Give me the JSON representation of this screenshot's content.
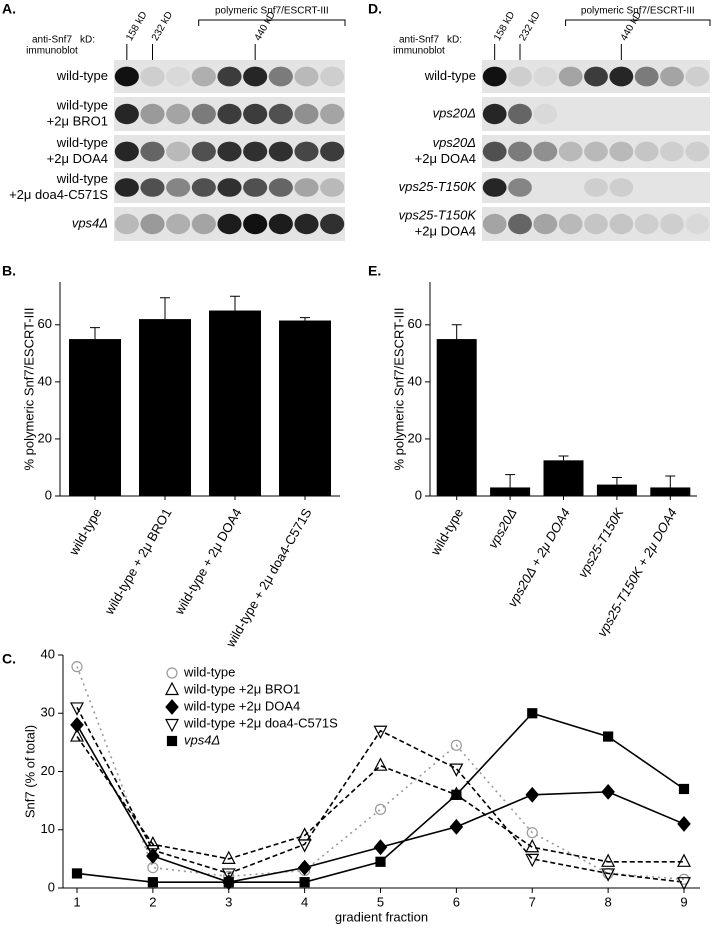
{
  "panels": {
    "A": "A.",
    "B": "B.",
    "C": "C.",
    "D": "D.",
    "E": "E."
  },
  "blots": [
    {
      "antibody": [
        "anti-Snf7",
        "immunoblot"
      ],
      "kd_label": "kD:",
      "markers": [
        "158 kD",
        "232 kD",
        "440 kD"
      ],
      "polymeric_label": "polymeric Snf7/ESCRT-III",
      "rows": [
        [
          "wild-type"
        ],
        [
          "wild-type",
          "+2μ BRO1"
        ],
        [
          "wild-type",
          "+2μ DOA4"
        ],
        [
          "wild-type",
          "+2μ doa4-C571S"
        ],
        [
          "vps4Δ"
        ]
      ]
    },
    {
      "antibody": [
        "anti-Snf7",
        "immunoblot"
      ],
      "kd_label": "kD:",
      "markers": [
        "158 kD",
        "232 kD",
        "440 kD"
      ],
      "polymeric_label": "polymeric Snf7/ESCRT-III",
      "rows": [
        [
          "wild-type"
        ],
        [
          "vps20Δ"
        ],
        [
          "vps20Δ",
          "+2μ DOA4"
        ],
        [
          "vps25-T150K"
        ],
        [
          "vps25-T150K",
          "+2μ DOA4"
        ]
      ]
    }
  ],
  "chart_data": [
    {
      "type": "bar",
      "ylabel": "% polymeric Snf7/ESCRT-III",
      "categories": [
        "wild-type",
        "wild-type + 2μ BRO1",
        "wild-type + 2μ DOA4",
        "wild-type + 2μ doa4-C571S"
      ],
      "values": [
        55,
        62,
        65,
        61.5
      ],
      "errors": [
        4,
        7.5,
        5,
        1
      ],
      "color": "#000000",
      "ylim": [
        0,
        75
      ],
      "yticks": [
        0,
        20,
        40,
        60
      ]
    },
    {
      "type": "bar",
      "ylabel": "% polymeric Snf7/ESCRT-III",
      "categories": [
        "wild-type",
        "vps20Δ",
        "vps20Δ + 2μ DOA4",
        "vps25-T150K",
        "vps25-T150K + 2μ DOA4"
      ],
      "values": [
        55,
        3,
        12.5,
        4,
        3
      ],
      "errors": [
        5,
        4.5,
        1.5,
        2.5,
        4
      ],
      "color": "#000000",
      "ylim": [
        0,
        75
      ],
      "yticks": [
        0,
        20,
        40,
        60
      ]
    },
    {
      "type": "line",
      "xlabel": "gradient fraction",
      "ylabel": "Snf7 (% of total)",
      "x": [
        1,
        2,
        3,
        4,
        5,
        6,
        7,
        8,
        9
      ],
      "xlim": [
        1,
        9
      ],
      "xticks": [
        1,
        2,
        3,
        4,
        5,
        6,
        7,
        8,
        9
      ],
      "ylim": [
        0,
        40
      ],
      "yticks": [
        0,
        10,
        20,
        30,
        40
      ],
      "series": [
        {
          "name": "wild-type",
          "color": "#999999",
          "marker": "circle",
          "marker_fill": "none",
          "dash": "dotted",
          "values": [
            38,
            3.5,
            2,
            3,
            13.5,
            24.5,
            9.5,
            2.5,
            1.5
          ]
        },
        {
          "name": "wild-type +2μ BRO1",
          "color": "#000000",
          "marker": "triangle-up",
          "marker_fill": "none",
          "dash": "dashed",
          "values": [
            26,
            7.5,
            5,
            9,
            21,
            16,
            7,
            4.5,
            4.5
          ]
        },
        {
          "name": "wild-type +2μ DOA4",
          "color": "#000000",
          "marker": "diamond",
          "marker_fill": "#000000",
          "dash": "solid",
          "values": [
            28,
            5.5,
            1,
            3.5,
            7,
            10.5,
            16,
            16.5,
            11
          ]
        },
        {
          "name": "wild-type +2μ doa4-C571S",
          "color": "#000000",
          "marker": "triangle-down",
          "marker_fill": "none",
          "dash": "dashed",
          "values": [
            31,
            6.5,
            2.5,
            7.5,
            27,
            20.5,
            5,
            2.5,
            1
          ]
        },
        {
          "name": "vps4Δ",
          "color": "#000000",
          "marker": "square",
          "marker_fill": "#000000",
          "dash": "solid",
          "values": [
            2.5,
            1,
            1,
            1,
            4.5,
            16,
            30,
            26,
            17
          ]
        }
      ]
    }
  ]
}
